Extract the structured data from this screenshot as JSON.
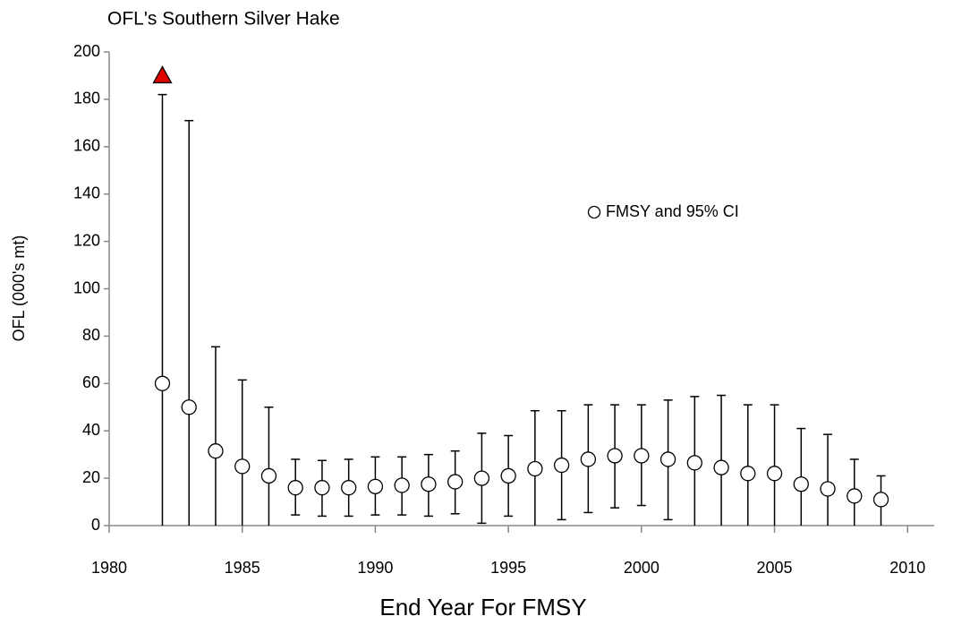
{
  "chart_data": {
    "type": "scatter",
    "title": "OFL's Southern Silver Hake",
    "xlabel": "End Year For FMSY",
    "ylabel": "OFL (000's mt)",
    "x": [
      1982,
      1983,
      1984,
      1985,
      1986,
      1987,
      1988,
      1989,
      1990,
      1991,
      1992,
      1993,
      1994,
      1995,
      1996,
      1997,
      1998,
      1999,
      2000,
      2001,
      2002,
      2003,
      2004,
      2005,
      2006,
      2007,
      2008,
      2009
    ],
    "series": [
      {
        "name": "FMSY and 95% CI",
        "color": "#ffffff",
        "values": [
          60,
          50,
          31.5,
          25,
          21,
          16,
          16,
          16,
          16.5,
          17,
          17.5,
          18.5,
          20,
          21,
          24,
          25.5,
          28,
          29.5,
          29.5,
          28,
          26.5,
          24.5,
          22,
          22,
          17.5,
          15.5,
          12.5,
          11
        ],
        "lower": [
          0,
          0,
          0,
          0,
          0,
          4.5,
          4,
          4,
          4.5,
          4.5,
          4,
          5,
          1,
          4,
          0,
          2.5,
          5.5,
          7.5,
          8.5,
          2.5,
          0,
          0,
          0,
          0,
          0,
          0,
          0,
          0
        ],
        "upper": [
          182,
          171,
          75.5,
          61.5,
          50,
          28,
          27.5,
          28,
          29,
          29,
          30,
          31.5,
          39,
          38,
          48.5,
          48.5,
          51,
          51,
          51,
          53,
          54.5,
          55,
          51,
          51,
          41,
          38.5,
          28,
          21
        ]
      }
    ],
    "highlight": {
      "x": 1982,
      "value": 190,
      "color": "#e00000"
    },
    "xlim": [
      1980,
      2011
    ],
    "xticks": [
      1980,
      1985,
      1990,
      1995,
      2000,
      2005,
      2010
    ],
    "ylim": [
      0,
      200
    ],
    "yticks": [
      0,
      20,
      40,
      60,
      80,
      100,
      120,
      140,
      160,
      180,
      200
    ]
  }
}
